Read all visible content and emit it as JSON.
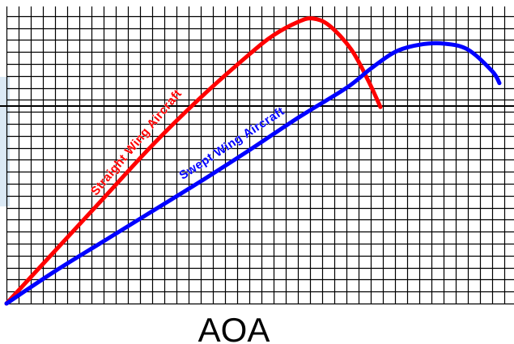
{
  "chart_data": {
    "type": "line",
    "title": "",
    "xlabel": "AOA",
    "ylabel": "",
    "xlim": [
      0,
      21
    ],
    "ylim": [
      0,
      12
    ],
    "grid": true,
    "legend": "none",
    "series": [
      {
        "name": "Straight Wing Aircraft",
        "color": "#ff0000",
        "x": [
          0,
          2,
          4,
          6,
          8,
          10,
          11,
          12,
          12.6,
          13.3,
          14.2,
          14.9,
          15.4
        ],
        "y": [
          0,
          2.2,
          4.4,
          6.6,
          8.6,
          10.4,
          11.2,
          11.75,
          11.9,
          11.6,
          10.6,
          9.3,
          8.2
        ]
      },
      {
        "name": "Swept Wing Aircraft",
        "color": "#0000ff",
        "x": [
          0,
          2,
          4,
          6,
          8,
          10,
          12,
          14,
          15,
          16,
          17,
          18,
          19,
          20,
          20.3
        ],
        "y": [
          0,
          1.35,
          2.6,
          3.85,
          5.1,
          6.4,
          7.75,
          9.0,
          9.8,
          10.5,
          10.8,
          10.85,
          10.6,
          9.7,
          9.2
        ]
      }
    ]
  }
}
